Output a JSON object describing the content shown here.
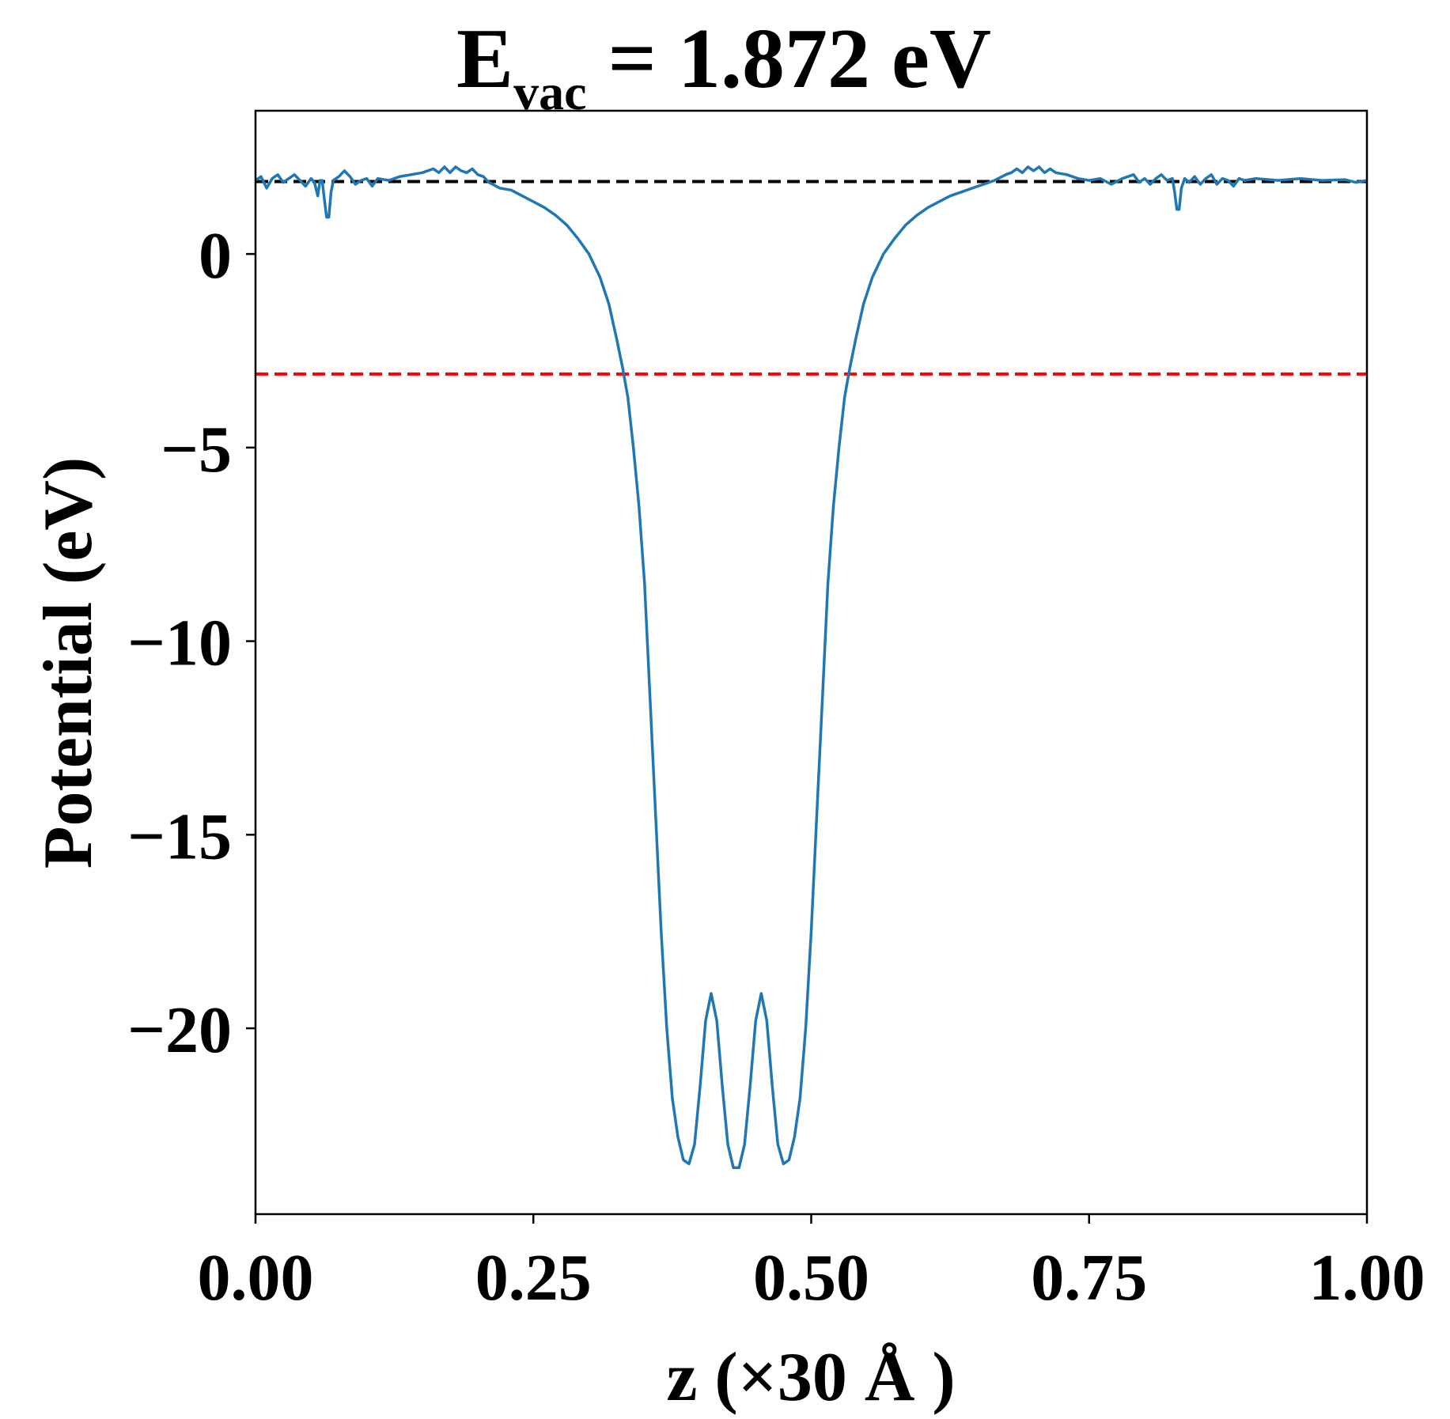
{
  "chart_data": {
    "type": "line",
    "title": {
      "prefix": "E",
      "subscript": "vac",
      "suffix": " = 1.872 eV"
    },
    "xlabel": "z (×30 Å )",
    "ylabel": "Potential (eV)",
    "xlim": [
      0.0,
      1.0
    ],
    "ylim": [
      -24.8,
      3.7
    ],
    "xticks": [
      0.0,
      0.25,
      0.5,
      0.75,
      1.0
    ],
    "xtick_labels": [
      "0.00",
      "0.25",
      "0.50",
      "0.75",
      "1.00"
    ],
    "yticks": [
      0,
      -5,
      -10,
      -15,
      -20
    ],
    "ytick_labels": [
      "0",
      "−5",
      "−10",
      "−15",
      "−20"
    ],
    "grid": false,
    "reference_lines": [
      {
        "y": 1.872,
        "color": "#000000",
        "style": "dashed"
      },
      {
        "y": -3.1,
        "color": "#ff0000",
        "style": "dashed"
      }
    ],
    "series": [
      {
        "color": "#1f77b4",
        "points": [
          [
            0.0,
            1.9
          ],
          [
            0.005,
            2.0
          ],
          [
            0.01,
            1.7
          ],
          [
            0.015,
            1.95
          ],
          [
            0.02,
            2.05
          ],
          [
            0.025,
            1.85
          ],
          [
            0.03,
            1.95
          ],
          [
            0.035,
            2.05
          ],
          [
            0.04,
            1.9
          ],
          [
            0.045,
            1.75
          ],
          [
            0.05,
            1.95
          ],
          [
            0.053,
            1.85
          ],
          [
            0.056,
            1.5
          ],
          [
            0.058,
            1.9
          ],
          [
            0.06,
            1.9
          ],
          [
            0.062,
            1.4
          ],
          [
            0.064,
            0.95
          ],
          [
            0.066,
            0.95
          ],
          [
            0.068,
            1.6
          ],
          [
            0.07,
            1.9
          ],
          [
            0.075,
            2.0
          ],
          [
            0.08,
            2.15
          ],
          [
            0.085,
            2.0
          ],
          [
            0.09,
            1.8
          ],
          [
            0.095,
            1.9
          ],
          [
            0.1,
            1.95
          ],
          [
            0.105,
            1.75
          ],
          [
            0.11,
            1.95
          ],
          [
            0.12,
            1.9
          ],
          [
            0.13,
            2.0
          ],
          [
            0.14,
            2.05
          ],
          [
            0.15,
            2.1
          ],
          [
            0.16,
            2.2
          ],
          [
            0.165,
            2.1
          ],
          [
            0.17,
            2.25
          ],
          [
            0.175,
            2.1
          ],
          [
            0.18,
            2.25
          ],
          [
            0.185,
            2.15
          ],
          [
            0.19,
            2.1
          ],
          [
            0.195,
            2.2
          ],
          [
            0.2,
            2.05
          ],
          [
            0.205,
            2.0
          ],
          [
            0.21,
            1.85
          ],
          [
            0.22,
            1.7
          ],
          [
            0.23,
            1.65
          ],
          [
            0.24,
            1.5
          ],
          [
            0.25,
            1.35
          ],
          [
            0.26,
            1.2
          ],
          [
            0.27,
            1.0
          ],
          [
            0.28,
            0.75
          ],
          [
            0.29,
            0.4
          ],
          [
            0.3,
            0.0
          ],
          [
            0.31,
            -0.6
          ],
          [
            0.318,
            -1.3
          ],
          [
            0.325,
            -2.2
          ],
          [
            0.33,
            -2.9
          ],
          [
            0.335,
            -3.7
          ],
          [
            0.34,
            -5.0
          ],
          [
            0.345,
            -6.5
          ],
          [
            0.35,
            -8.5
          ],
          [
            0.355,
            -11.5
          ],
          [
            0.36,
            -14.5
          ],
          [
            0.365,
            -17.5
          ],
          [
            0.37,
            -20.0
          ],
          [
            0.375,
            -21.8
          ],
          [
            0.38,
            -22.8
          ],
          [
            0.385,
            -23.4
          ],
          [
            0.39,
            -23.5
          ],
          [
            0.395,
            -23.0
          ],
          [
            0.4,
            -21.5
          ],
          [
            0.405,
            -19.8
          ],
          [
            0.41,
            -19.1
          ],
          [
            0.415,
            -19.8
          ],
          [
            0.42,
            -21.5
          ],
          [
            0.425,
            -23.0
          ],
          [
            0.43,
            -23.6
          ],
          [
            0.435,
            -23.6
          ],
          [
            0.44,
            -23.0
          ],
          [
            0.445,
            -21.5
          ],
          [
            0.45,
            -19.8
          ],
          [
            0.455,
            -19.1
          ],
          [
            0.46,
            -19.8
          ],
          [
            0.465,
            -21.5
          ],
          [
            0.47,
            -23.0
          ],
          [
            0.475,
            -23.5
          ],
          [
            0.48,
            -23.4
          ],
          [
            0.485,
            -22.8
          ],
          [
            0.49,
            -21.8
          ],
          [
            0.495,
            -20.0
          ],
          [
            0.5,
            -17.5
          ],
          [
            0.505,
            -14.5
          ],
          [
            0.51,
            -11.5
          ],
          [
            0.515,
            -8.5
          ],
          [
            0.52,
            -6.5
          ],
          [
            0.525,
            -5.0
          ],
          [
            0.53,
            -3.7
          ],
          [
            0.535,
            -2.9
          ],
          [
            0.54,
            -2.2
          ],
          [
            0.547,
            -1.3
          ],
          [
            0.555,
            -0.6
          ],
          [
            0.565,
            0.0
          ],
          [
            0.575,
            0.4
          ],
          [
            0.585,
            0.75
          ],
          [
            0.595,
            1.0
          ],
          [
            0.605,
            1.2
          ],
          [
            0.615,
            1.35
          ],
          [
            0.625,
            1.5
          ],
          [
            0.635,
            1.6
          ],
          [
            0.645,
            1.7
          ],
          [
            0.655,
            1.8
          ],
          [
            0.665,
            1.9
          ],
          [
            0.675,
            2.05
          ],
          [
            0.68,
            2.1
          ],
          [
            0.685,
            2.2
          ],
          [
            0.69,
            2.1
          ],
          [
            0.695,
            2.25
          ],
          [
            0.7,
            2.15
          ],
          [
            0.705,
            2.25
          ],
          [
            0.71,
            2.1
          ],
          [
            0.715,
            2.2
          ],
          [
            0.72,
            2.1
          ],
          [
            0.73,
            2.05
          ],
          [
            0.74,
            1.95
          ],
          [
            0.75,
            1.9
          ],
          [
            0.76,
            1.95
          ],
          [
            0.77,
            1.8
          ],
          [
            0.78,
            1.95
          ],
          [
            0.79,
            2.05
          ],
          [
            0.795,
            1.85
          ],
          [
            0.8,
            1.95
          ],
          [
            0.805,
            1.8
          ],
          [
            0.81,
            1.95
          ],
          [
            0.815,
            2.05
          ],
          [
            0.82,
            1.9
          ],
          [
            0.825,
            1.95
          ],
          [
            0.827,
            1.6
          ],
          [
            0.829,
            1.15
          ],
          [
            0.831,
            1.15
          ],
          [
            0.833,
            1.7
          ],
          [
            0.836,
            1.95
          ],
          [
            0.84,
            1.85
          ],
          [
            0.845,
            2.0
          ],
          [
            0.85,
            1.8
          ],
          [
            0.855,
            1.95
          ],
          [
            0.86,
            2.05
          ],
          [
            0.865,
            1.8
          ],
          [
            0.87,
            1.95
          ],
          [
            0.875,
            1.9
          ],
          [
            0.88,
            1.75
          ],
          [
            0.885,
            1.95
          ],
          [
            0.89,
            1.9
          ],
          [
            0.9,
            1.95
          ],
          [
            0.92,
            1.9
          ],
          [
            0.94,
            1.95
          ],
          [
            0.96,
            1.9
          ],
          [
            0.98,
            1.92
          ],
          [
            0.99,
            1.85
          ],
          [
            1.0,
            1.9
          ]
        ]
      }
    ]
  }
}
